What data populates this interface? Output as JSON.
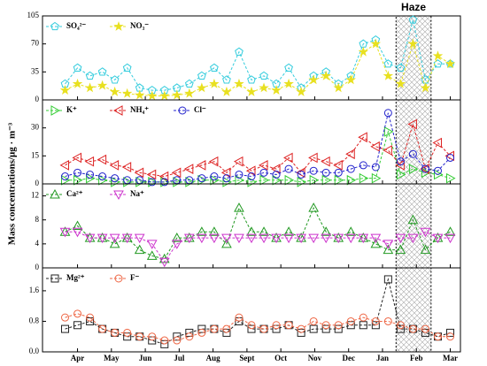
{
  "chart_data": {
    "type": "line",
    "ylabel": "Mass concentrations/μg · m⁻³",
    "xlim": [
      0,
      370
    ],
    "xticks": [
      {
        "value": 31,
        "label": "Apr"
      },
      {
        "value": 61,
        "label": "May"
      },
      {
        "value": 91,
        "label": "Jun"
      },
      {
        "value": 121,
        "label": "Jul"
      },
      {
        "value": 151,
        "label": "Aug"
      },
      {
        "value": 181,
        "label": "Sept"
      },
      {
        "value": 211,
        "label": "Oct"
      },
      {
        "value": 241,
        "label": "Nov"
      },
      {
        "value": 271,
        "label": "Dec"
      },
      {
        "value": 301,
        "label": "Jan"
      },
      {
        "value": 331,
        "label": "Feb"
      },
      {
        "value": 361,
        "label": "Mar"
      }
    ],
    "haze": {
      "label": "Haze",
      "xlim": [
        313,
        344
      ]
    },
    "x": [
      20,
      31,
      42,
      53,
      64,
      75,
      86,
      97,
      108,
      119,
      130,
      141,
      152,
      163,
      174,
      185,
      196,
      207,
      218,
      229,
      240,
      251,
      262,
      273,
      284,
      295,
      306,
      317,
      328,
      339,
      350,
      361
    ],
    "panels": [
      {
        "ylim": [
          0,
          105
        ],
        "yticks": [
          0,
          35,
          70,
          105
        ],
        "series": [
          {
            "name": "SO₄²⁻",
            "color": "#33ccdd",
            "marker": "pentagon",
            "values": [
              20,
              40,
              30,
              35,
              25,
              40,
              15,
              12,
              12,
              15,
              20,
              30,
              40,
              25,
              60,
              25,
              30,
              20,
              40,
              15,
              30,
              35,
              20,
              30,
              70,
              75,
              45,
              40,
              100,
              25,
              45,
              45
            ]
          },
          {
            "name": "NO₃⁻",
            "color": "#e8e020",
            "marker": "star",
            "values": [
              12,
              20,
              15,
              18,
              10,
              8,
              6,
              5,
              5,
              6,
              8,
              15,
              20,
              10,
              20,
              10,
              15,
              12,
              20,
              10,
              25,
              30,
              15,
              25,
              60,
              70,
              30,
              20,
              70,
              15,
              55,
              45
            ]
          }
        ]
      },
      {
        "ylim": [
          0,
          45
        ],
        "yticks": [
          0,
          15,
          30
        ],
        "series": [
          {
            "name": "K⁺",
            "color": "#33cc33",
            "marker": "right",
            "values": [
              2,
              2,
              3,
              2,
              1,
              1,
              1,
              1,
              1,
              1,
              1,
              2,
              2,
              1,
              2,
              1,
              2,
              2,
              2,
              1,
              2,
              2,
              2,
              2,
              3,
              3,
              28,
              5,
              8,
              6,
              5,
              3
            ]
          },
          {
            "name": "NH₄⁺",
            "color": "#dd2222",
            "marker": "left",
            "values": [
              10,
              14,
              12,
              13,
              10,
              9,
              6,
              5,
              4,
              6,
              8,
              10,
              12,
              6,
              12,
              7,
              10,
              8,
              14,
              6,
              14,
              12,
              10,
              16,
              25,
              20,
              18,
              10,
              32,
              8,
              22,
              15
            ]
          },
          {
            "name": "Cl⁻",
            "color": "#2222cc",
            "marker": "circle",
            "values": [
              4,
              6,
              5,
              4,
              3,
              2,
              2,
              1,
              1,
              2,
              2,
              3,
              4,
              3,
              5,
              4,
              6,
              5,
              8,
              5,
              7,
              6,
              6,
              8,
              10,
              9,
              38,
              12,
              16,
              8,
              7,
              14
            ]
          }
        ]
      },
      {
        "ylim": [
          0,
          14
        ],
        "yticks": [
          0,
          4,
          8,
          12
        ],
        "series": [
          {
            "name": "Ca²⁺",
            "color": "#229922",
            "marker": "up",
            "values": [
              6,
              7,
              5,
              5,
              4,
              5,
              3,
              2,
              1.5,
              5,
              5,
              6,
              6,
              4,
              10,
              6,
              6,
              5,
              6,
              5,
              10,
              6,
              5,
              6,
              5,
              4,
              3,
              3,
              8,
              3,
              5,
              6
            ]
          },
          {
            "name": "Na⁺",
            "color": "#cc33cc",
            "marker": "down",
            "values": [
              6,
              6,
              5,
              5,
              5,
              5,
              5,
              4,
              1,
              4,
              5,
              5,
              5,
              5,
              5,
              5,
              5,
              5,
              5,
              5,
              5,
              5,
              5,
              5,
              5,
              5,
              4,
              5,
              5,
              6,
              5,
              5
            ]
          }
        ]
      },
      {
        "ylim": [
          0,
          2.2
        ],
        "yticks": [
          {
            "value": 0,
            "label": "0.0"
          },
          0.8,
          1.6
        ],
        "series": [
          {
            "name": "Mg²⁺",
            "color": "#222222",
            "marker": "square",
            "values": [
              0.6,
              0.7,
              0.8,
              0.6,
              0.5,
              0.4,
              0.4,
              0.3,
              0.2,
              0.4,
              0.5,
              0.6,
              0.6,
              0.5,
              0.8,
              0.6,
              0.6,
              0.6,
              0.7,
              0.5,
              0.6,
              0.6,
              0.6,
              0.7,
              0.7,
              0.7,
              1.9,
              0.6,
              0.6,
              0.5,
              0.4,
              0.5
            ]
          },
          {
            "name": "F⁻",
            "color": "#ee6644",
            "marker": "circle",
            "values": [
              0.9,
              1.0,
              0.9,
              0.6,
              0.5,
              0.5,
              0.4,
              0.4,
              0.3,
              0.3,
              0.4,
              0.5,
              0.6,
              0.6,
              0.9,
              0.7,
              0.6,
              0.7,
              0.7,
              0.6,
              0.8,
              0.7,
              0.7,
              0.8,
              0.9,
              0.8,
              0.8,
              0.7,
              0.6,
              0.6,
              0.4,
              0.4
            ]
          }
        ]
      }
    ]
  }
}
